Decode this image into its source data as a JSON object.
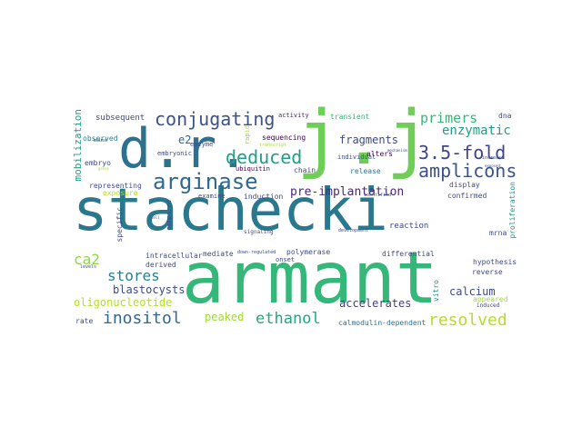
{
  "words": [
    {
      "text": "stachecki",
      "color": "#2a788e"
    },
    {
      "text": "armant",
      "color": "#35b779"
    },
    {
      "text": "d.r.",
      "color": "#2c728e"
    },
    {
      "text": "j.j",
      "color": "#6ece58"
    },
    {
      "text": "arginase",
      "color": "#31688e"
    },
    {
      "text": "conjugating",
      "color": "#3b528b"
    },
    {
      "text": "deduced",
      "color": "#1f9e89"
    },
    {
      "text": "3.5-fold",
      "color": "#414487"
    },
    {
      "text": "amplicons",
      "color": "#3b528b"
    },
    {
      "text": "primers",
      "color": "#35b779"
    },
    {
      "text": "enzymatic",
      "color": "#1f9e89"
    },
    {
      "text": "fragments",
      "color": "#3e4a89"
    },
    {
      "text": "pre-implantation",
      "color": "#482878"
    },
    {
      "text": "ethanol",
      "color": "#22a884"
    },
    {
      "text": "inositol",
      "color": "#31688e"
    },
    {
      "text": "resolved",
      "color": "#b5de2b"
    },
    {
      "text": "stores",
      "color": "#26828e"
    },
    {
      "text": "blastocysts",
      "color": "#3e4a89"
    },
    {
      "text": "oligonucleotide",
      "color": "#b5de2b"
    },
    {
      "text": "ca2",
      "color": "#90d743"
    },
    {
      "text": "accelerates",
      "color": "#433e85"
    },
    {
      "text": "calcium",
      "color": "#3e4a89"
    },
    {
      "text": "peaked",
      "color": "#a0da39"
    },
    {
      "text": "mobilization",
      "color": "#1f9e89"
    },
    {
      "text": "e2",
      "color": "#31688e"
    },
    {
      "text": "subsequent",
      "color": "#3e4a89"
    },
    {
      "text": "observed",
      "color": "#26828e"
    },
    {
      "text": "enzyme",
      "color": "#3e4a89"
    },
    {
      "text": "embryonic",
      "color": "#3e4a89"
    },
    {
      "text": "embryo",
      "color": "#3e4a89"
    },
    {
      "text": "representing",
      "color": "#3e4a89"
    },
    {
      "text": "exposure",
      "color": "#b5de2b"
    },
    {
      "text": "ubiquitin",
      "color": "#440154"
    },
    {
      "text": "chain",
      "color": "#3e4a89"
    },
    {
      "text": "rapid",
      "color": "#a0da39"
    },
    {
      "text": "sequencing",
      "color": "#440154"
    },
    {
      "text": "activity",
      "color": "#482878"
    },
    {
      "text": "transcript",
      "color": "#a0da39"
    },
    {
      "text": "transient",
      "color": "#35b779"
    },
    {
      "text": "individual",
      "color": "#3e4a89"
    },
    {
      "text": "alters",
      "color": "#440154"
    },
    {
      "text": "release",
      "color": "#2c728e"
    },
    {
      "text": "identified",
      "color": "#2c728e"
    },
    {
      "text": "mechanism",
      "color": "#3e4a89"
    },
    {
      "text": "increase",
      "color": "#3e4a89"
    },
    {
      "text": "exposed",
      "color": "#3e4a89"
    },
    {
      "text": "dna",
      "color": "#3e4a89"
    },
    {
      "text": "display",
      "color": "#3e4a89"
    },
    {
      "text": "confirmed",
      "color": "#3e4a89"
    },
    {
      "text": "proliferation",
      "color": "#21918c"
    },
    {
      "text": "reaction",
      "color": "#3e4a89"
    },
    {
      "text": "mrna",
      "color": "#3e4a89"
    },
    {
      "text": "hypothesis",
      "color": "#3e4a89"
    },
    {
      "text": "reverse",
      "color": "#3e4a89"
    },
    {
      "text": "vitro",
      "color": "#21918c"
    },
    {
      "text": "appeared",
      "color": "#a0da39"
    },
    {
      "text": "induced",
      "color": "#3e4a89"
    },
    {
      "text": "calmodulin-dependent",
      "color": "#2c728e"
    },
    {
      "text": "differential",
      "color": "#3e4a89"
    },
    {
      "text": "development",
      "color": "#3e4a89"
    },
    {
      "text": "onset",
      "color": "#3e4a89"
    },
    {
      "text": "polymerase",
      "color": "#3e4a89"
    },
    {
      "text": "down-regulated",
      "color": "#3e4a89"
    },
    {
      "text": "mediate",
      "color": "#3e4a89"
    },
    {
      "text": "signaling",
      "color": "#3e4a89"
    },
    {
      "text": "intracellular",
      "color": "#3e4a89"
    },
    {
      "text": "derived",
      "color": "#3e4a89"
    },
    {
      "text": "compared",
      "color": "#3e4a89"
    },
    {
      "text": "examine",
      "color": "#3e4a89"
    },
    {
      "text": "induction",
      "color": "#3e4a89"
    },
    {
      "text": "specific",
      "color": "#3e4a89"
    },
    {
      "text": "cell",
      "color": "#3e4a89"
    },
    {
      "text": "levels",
      "color": "#3e4a89"
    },
    {
      "text": "rate",
      "color": "#3e4a89"
    },
    {
      "text": "mouse",
      "color": "#3e4a89"
    },
    {
      "text": "genes",
      "color": "#a0da39"
    }
  ]
}
